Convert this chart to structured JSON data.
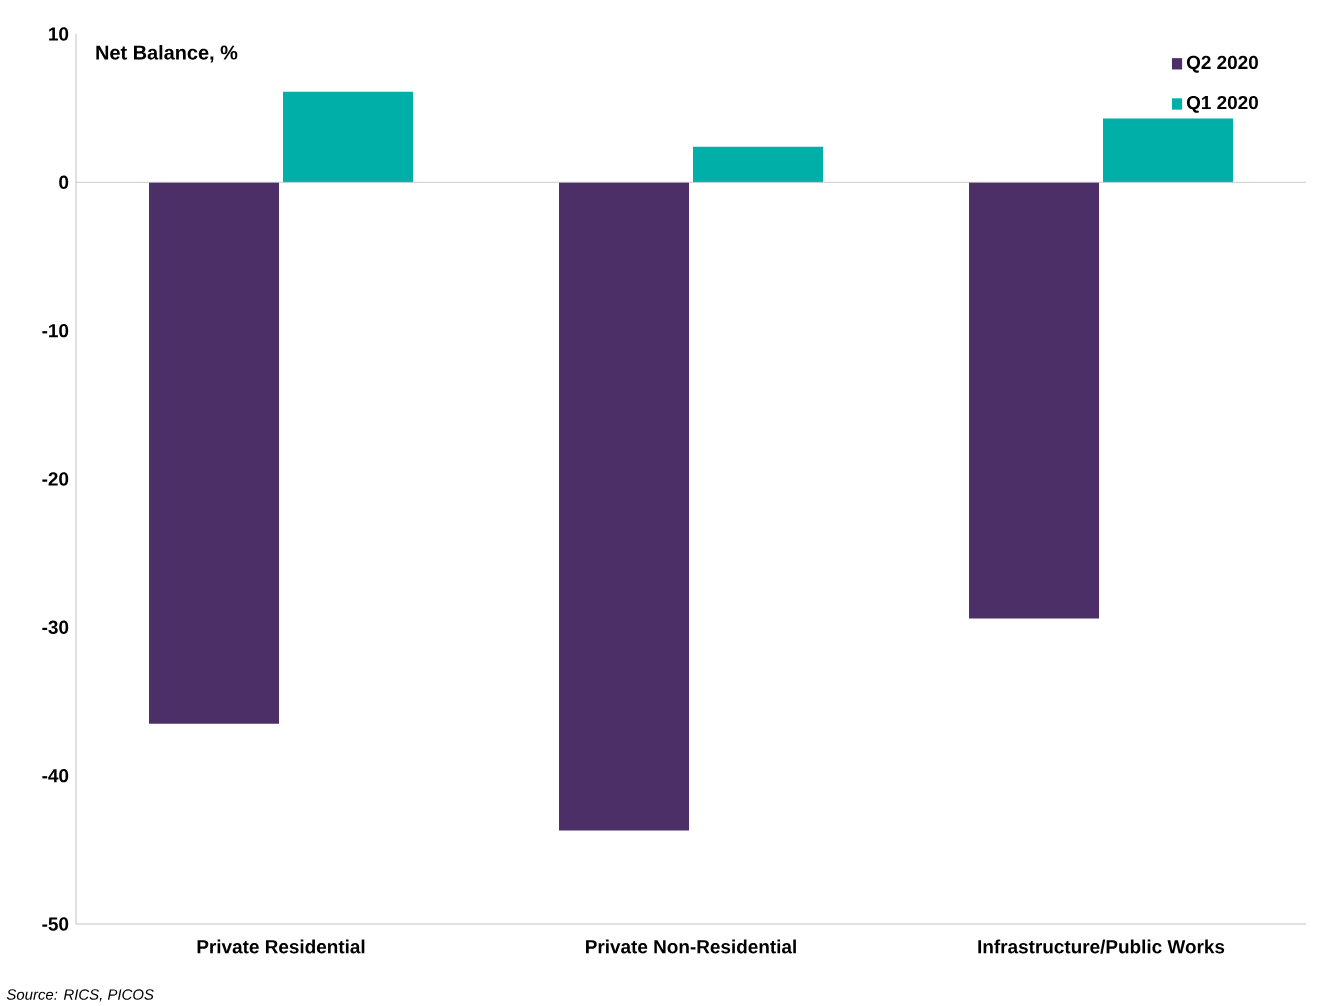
{
  "chart_data": {
    "type": "bar",
    "ylabel": "Net Balance, %",
    "categories": [
      "Private Residential",
      "Private Non-Residential",
      "Infrastructure/Public Works"
    ],
    "series": [
      {
        "name": "Q2 2020",
        "color": "#4b2f66",
        "values": [
          -36.5,
          -43.7,
          -29.4
        ]
      },
      {
        "name": "Q1 2020",
        "color": "#00b0a8",
        "values": [
          6.1,
          2.4,
          4.3
        ]
      }
    ],
    "ylim": [
      -50,
      10
    ],
    "yticks": [
      -50,
      -40,
      -30,
      -20,
      -10,
      0,
      10
    ],
    "legend": "top right",
    "ref_lines": [
      {
        "axis": "y",
        "value": 0,
        "color": "#bfbfbf"
      }
    ],
    "annotations": [
      "Source: RICS, PICOS"
    ]
  }
}
